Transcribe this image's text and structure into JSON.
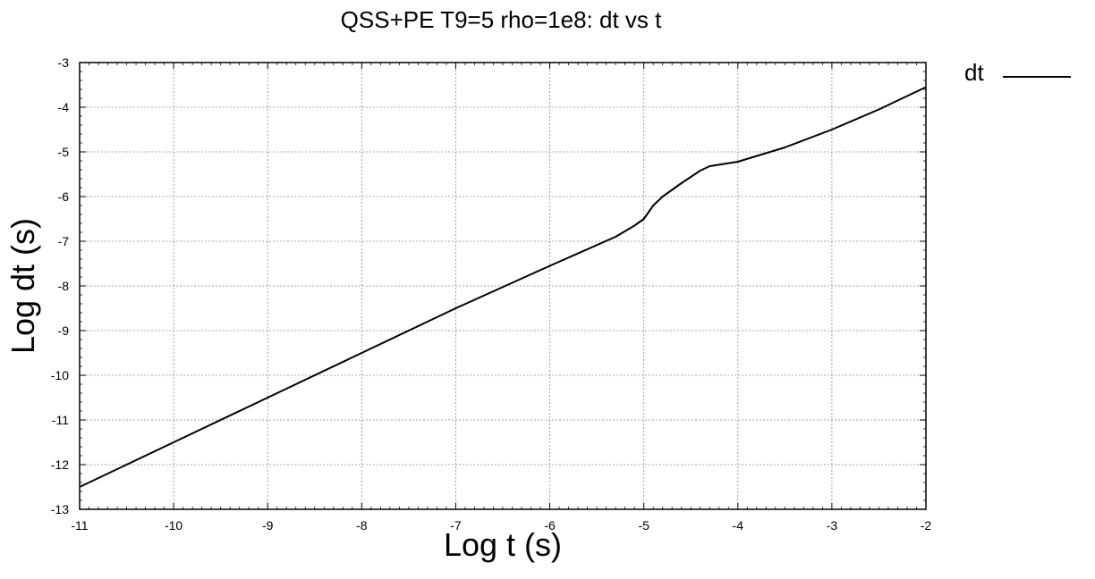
{
  "chart_data": {
    "type": "line",
    "title": "QSS+PE T9=5 rho=1e8: dt vs t",
    "xlabel": "Log t (s)",
    "ylabel": "Log dt (s)",
    "xlim": [
      -11,
      -2
    ],
    "ylim": [
      -13,
      -3
    ],
    "xticks": [
      "-11",
      "-10",
      "-9",
      "-8",
      "-7",
      "-6",
      "-5",
      "-4",
      "-3",
      "-2"
    ],
    "yticks": [
      "-3",
      "-4",
      "-5",
      "-6",
      "-7",
      "-8",
      "-9",
      "-10",
      "-11",
      "-12",
      "-13"
    ],
    "grid": true,
    "legend_position": "outside-top-right",
    "series": [
      {
        "name": "dt",
        "color": "#000000",
        "x": [
          -11.0,
          -10.0,
          -9.0,
          -8.0,
          -7.0,
          -6.0,
          -5.3,
          -5.1,
          -5.0,
          -4.9,
          -4.8,
          -4.6,
          -4.4,
          -4.3,
          -4.0,
          -3.5,
          -3.0,
          -2.5,
          -2.0
        ],
        "y": [
          -12.5,
          -11.5,
          -10.5,
          -9.5,
          -8.5,
          -7.55,
          -6.9,
          -6.65,
          -6.5,
          -6.2,
          -6.0,
          -5.7,
          -5.42,
          -5.32,
          -5.22,
          -4.9,
          -4.5,
          -4.05,
          -3.55
        ]
      }
    ]
  }
}
